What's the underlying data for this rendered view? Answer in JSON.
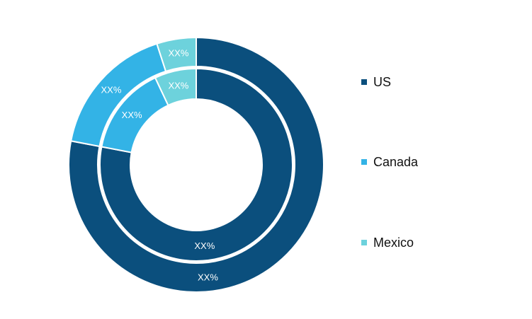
{
  "chart_data": {
    "type": "pie",
    "subtype": "double-donut",
    "categories": [
      "US",
      "Canada",
      "Mexico"
    ],
    "colors": [
      "#0b4f7d",
      "#33b3e6",
      "#6dd2dc"
    ],
    "rings": [
      {
        "ring": "outer",
        "values": [
          78,
          17,
          5
        ],
        "labels": [
          "XX%",
          "XX%",
          "XX%"
        ]
      },
      {
        "ring": "inner",
        "values": [
          78,
          15,
          7
        ],
        "labels": [
          "XX%",
          "XX%",
          "XX%"
        ]
      }
    ],
    "legend": {
      "position": "right",
      "items": [
        {
          "label": "US",
          "color": "#0b4f7d"
        },
        {
          "label": "Canada",
          "color": "#33b3e6"
        },
        {
          "label": "Mexico",
          "color": "#6dd2dc"
        }
      ]
    }
  }
}
